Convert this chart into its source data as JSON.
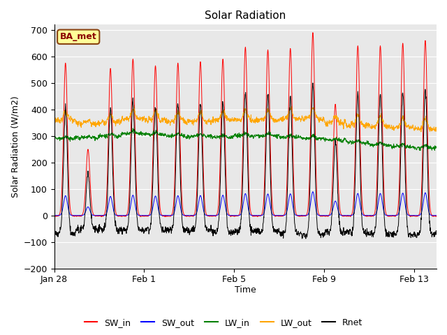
{
  "title": "Solar Radiation",
  "ylabel": "Solar Radiation (W/m2)",
  "xlabel": "Time",
  "ylim": [
    -200,
    720
  ],
  "yticks": [
    -200,
    -100,
    0,
    100,
    200,
    300,
    400,
    500,
    600,
    700
  ],
  "background_color": "#ffffff",
  "plot_bg_color": "#e8e8e8",
  "annotation_text": "BA_met",
  "annotation_bg": "#ffff99",
  "annotation_border": "#8b4513",
  "legend_entries": [
    "SW_in",
    "SW_out",
    "LW_in",
    "LW_out",
    "Rnet"
  ],
  "line_colors": [
    "red",
    "blue",
    "green",
    "orange",
    "black"
  ],
  "x_tick_labels": [
    "Jan 28",
    "Feb 1",
    "Feb 5",
    "Feb 9",
    "Feb 13"
  ],
  "figsize": [
    6.4,
    4.8
  ],
  "dpi": 100
}
